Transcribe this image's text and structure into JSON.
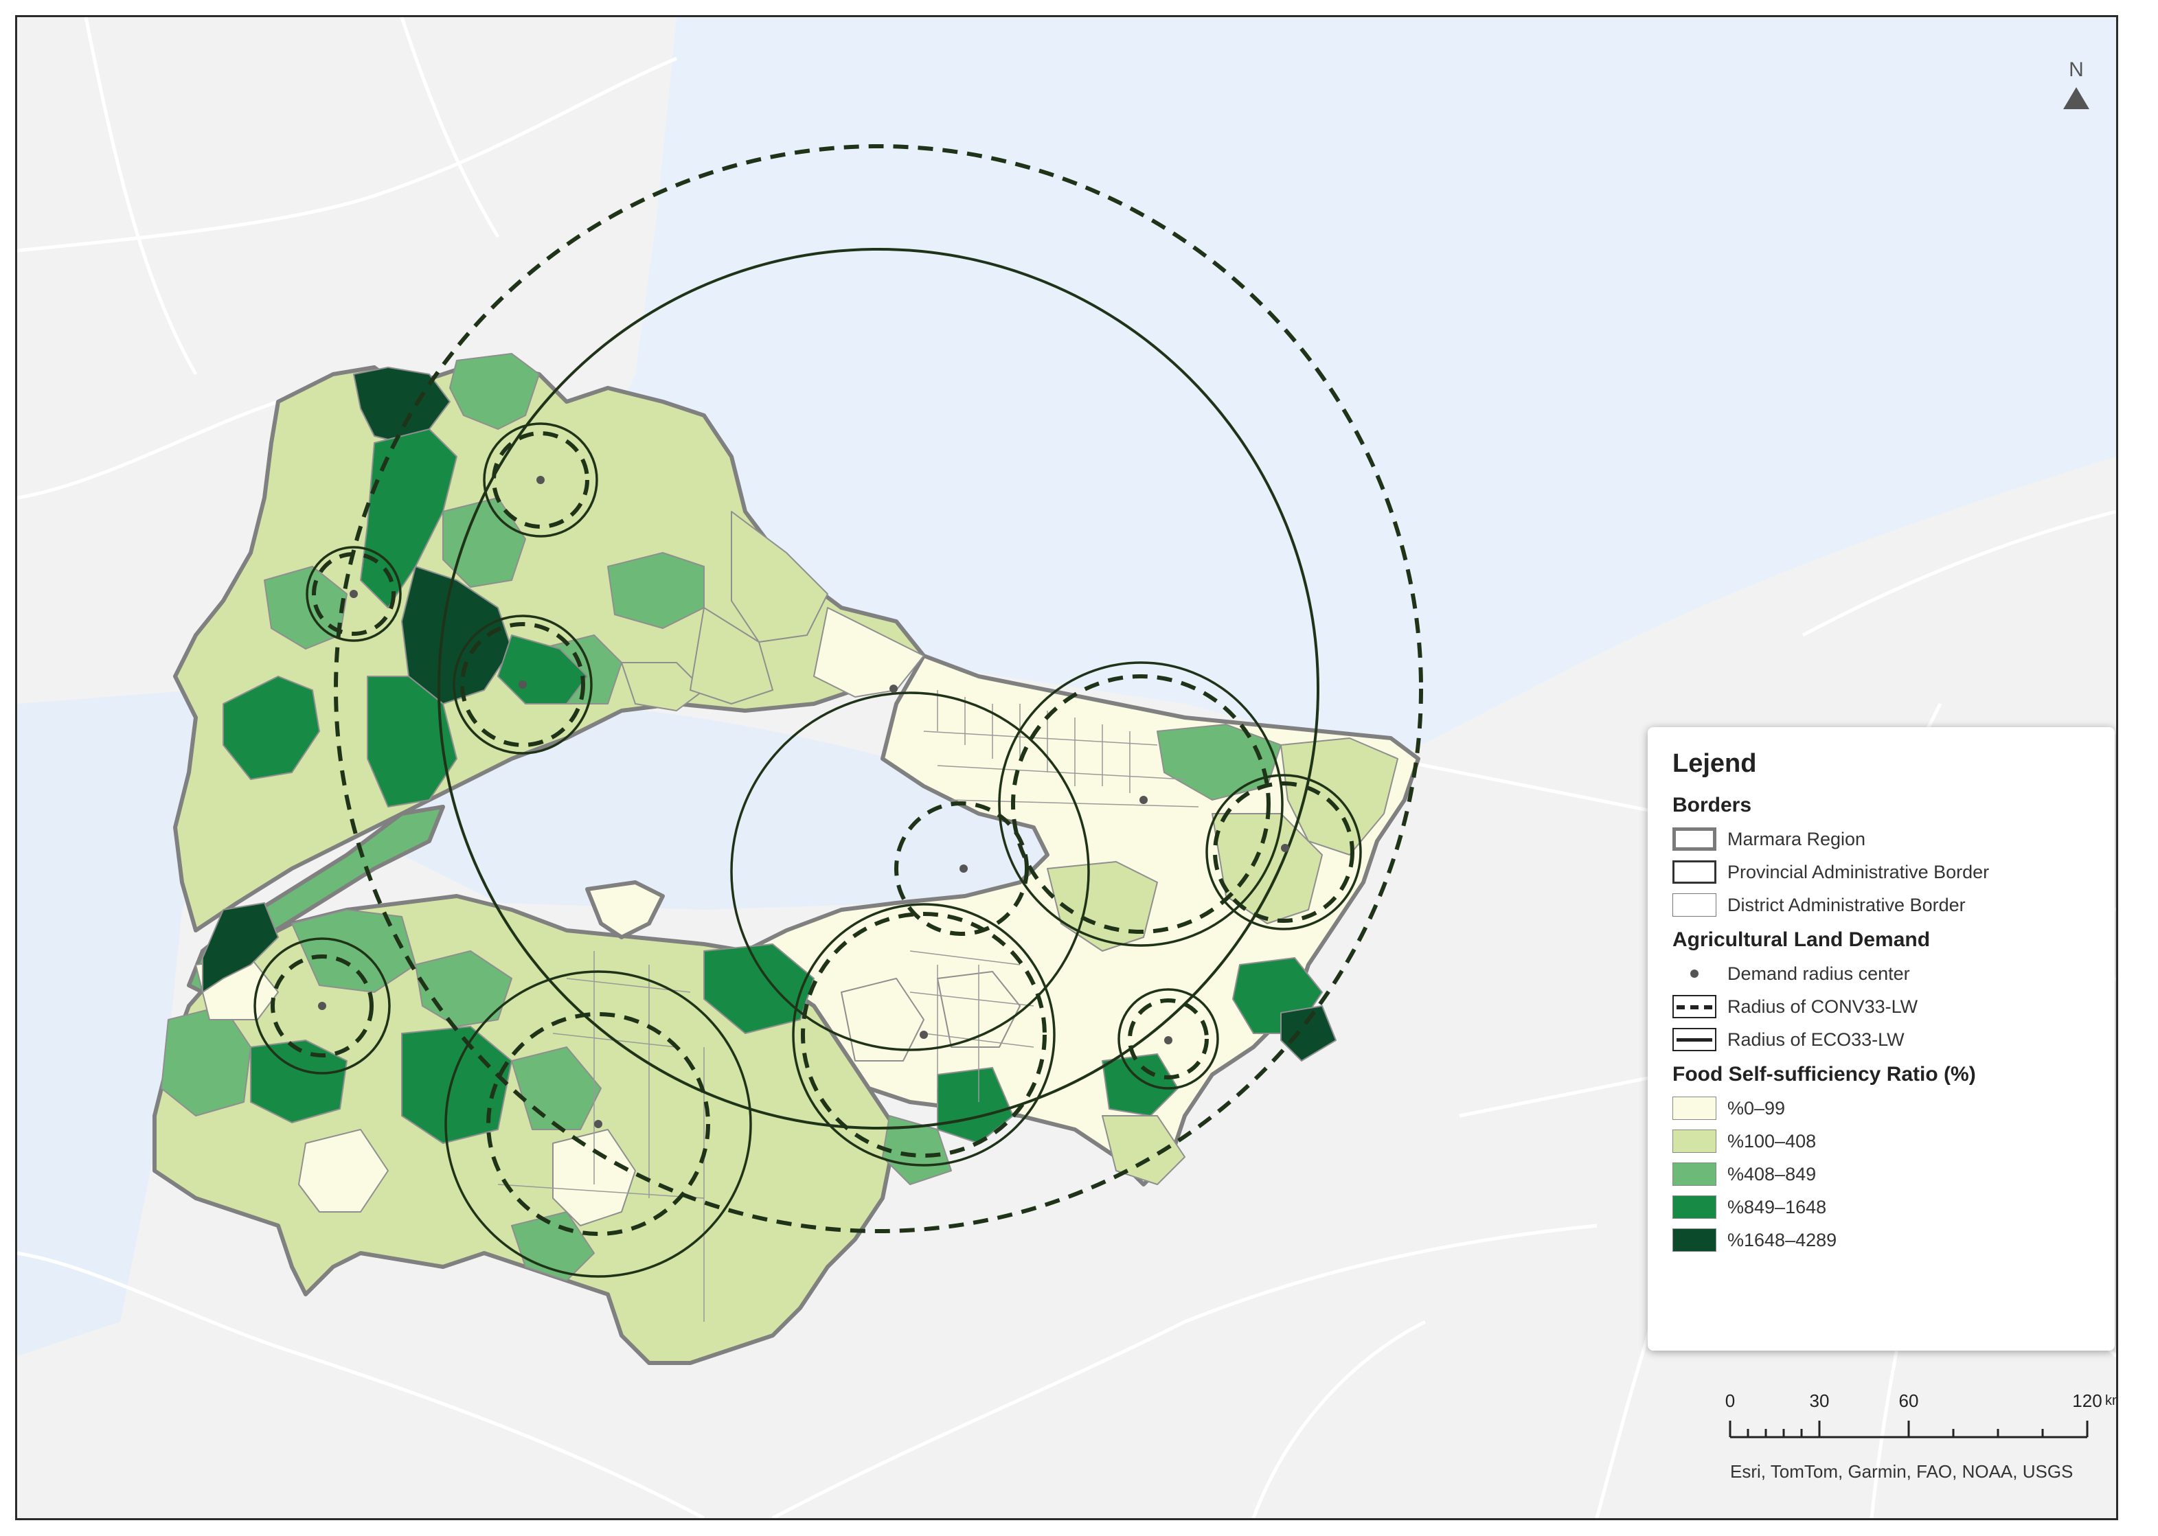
{
  "north_arrow": {
    "label": "N"
  },
  "legend": {
    "title": "Lejend",
    "borders": {
      "heading": "Borders",
      "items": [
        {
          "label": "Marmara Region"
        },
        {
          "label": "Provincial Administrative Border"
        },
        {
          "label": "District Administrative Border"
        }
      ]
    },
    "demand": {
      "heading": "Agricultural Land Demand",
      "items": [
        {
          "label": "Demand radius center"
        },
        {
          "label": "Radius of CONV33-LW"
        },
        {
          "label": "Radius of ECO33-LW"
        }
      ]
    },
    "ratio": {
      "heading": "Food Self-sufficiency Ratio (%)",
      "classes": [
        {
          "label": "%0–99",
          "color": "#fbfbe4"
        },
        {
          "label": "%100–408",
          "color": "#d4e4a6"
        },
        {
          "label": "%408–849",
          "color": "#6dba78"
        },
        {
          "label": "%849–1648",
          "color": "#178a45"
        },
        {
          "label": "%1648–4289",
          "color": "#0b4a2b"
        }
      ]
    }
  },
  "scale_bar": {
    "ticks": [
      "0",
      "30",
      "60",
      "120"
    ],
    "unit": "km"
  },
  "attribution": "Esri, TomTom, Garmin, FAO, NOAA, USGS",
  "colors": {
    "sea": "#e9f2fb",
    "land_background": "#f2f2f2",
    "road": "#ffffff",
    "region_border": "#737373",
    "district_border": "#9a9a9a",
    "radius_line": "#1f3318"
  }
}
